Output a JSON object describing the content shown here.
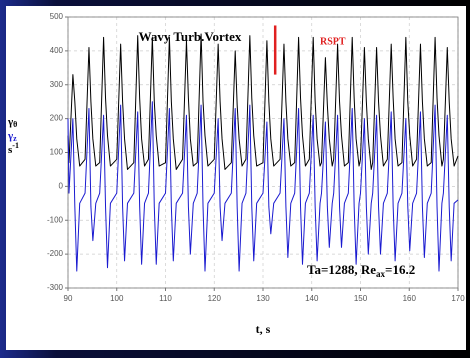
{
  "chart_data": {
    "type": "line",
    "title": "Wavy Turb.Vortex",
    "xlabel": "t, s",
    "ylabel": [
      {
        "text": "γ",
        "sub": "θ",
        "color": "#000000"
      },
      {
        "text": "γ",
        "sub": "z",
        "color": "#1a1ad0"
      },
      {
        "text": "s",
        "sup": "-1",
        "color": "#000000"
      }
    ],
    "annotation": {
      "main": "Ta=1288, Re",
      "sub": "ax",
      "tail": "=16.2"
    },
    "marker": {
      "label": "RSPT",
      "x": 132.5,
      "ymin": 330,
      "ymax": 475,
      "color": "#e02020"
    },
    "xlim": [
      90,
      170
    ],
    "xticks": [
      90,
      100,
      110,
      120,
      130,
      140,
      150,
      160,
      170
    ],
    "ylim": [
      -300,
      500
    ],
    "yticks": [
      -300,
      -200,
      -100,
      0,
      100,
      200,
      300,
      400,
      500
    ],
    "grid": true,
    "x": [
      90,
      90.2,
      91,
      91.4,
      91.8,
      92.4,
      93.5,
      94.3,
      94.7,
      95.1,
      95.7,
      96.5,
      97.3,
      97.7,
      98.1,
      98.7,
      100,
      100.8,
      101.2,
      101.6,
      102.2,
      103.5,
      104.3,
      104.7,
      105.1,
      105.7,
      106.5,
      107.3,
      107.7,
      108.1,
      108.7,
      110,
      110.8,
      111.2,
      111.6,
      112.2,
      113.5,
      114.3,
      114.7,
      115.1,
      115.7,
      116.5,
      117.3,
      117.7,
      118.1,
      118.7,
      120,
      120.8,
      121.2,
      121.6,
      122.2,
      123.5,
      124.3,
      124.7,
      125.1,
      125.7,
      126.5,
      127.3,
      127.7,
      128.1,
      128.7,
      130,
      130.8,
      131.2,
      131.6,
      132.2,
      133.5,
      134.3,
      134.7,
      135.1,
      135.7,
      136.5,
      137.3,
      137.7,
      138.1,
      138.7,
      139.5,
      140.3,
      140.7,
      141.1,
      141.7,
      142,
      142.8,
      143.2,
      143.6,
      144.2,
      144.5,
      145.3,
      145.7,
      146.1,
      146.7,
      147.5,
      148.3,
      148.7,
      149.1,
      149.7,
      150,
      150.8,
      151.2,
      151.6,
      152.2,
      152.5,
      153.3,
      153.7,
      154.1,
      154.7,
      155.5,
      156.3,
      156.7,
      157.1,
      157.7,
      158.5,
      159.3,
      159.7,
      160.1,
      160.7,
      161.5,
      162.3,
      162.7,
      163.1,
      163.7,
      164.5,
      165.3,
      165.7,
      166.1,
      166.7,
      167,
      167.8,
      168.2,
      168.6,
      169.2,
      170
    ],
    "series": [
      {
        "name": "γθ",
        "color": "#000000",
        "values": [
          150,
          70,
          330,
          250,
          140,
          60,
          80,
          410,
          250,
          140,
          60,
          70,
          440,
          260,
          150,
          60,
          80,
          420,
          250,
          140,
          50,
          70,
          445,
          260,
          140,
          60,
          80,
          440,
          250,
          150,
          60,
          70,
          440,
          250,
          140,
          50,
          80,
          430,
          260,
          140,
          60,
          70,
          450,
          250,
          150,
          60,
          80,
          420,
          250,
          140,
          50,
          70,
          400,
          240,
          140,
          60,
          80,
          445,
          260,
          150,
          60,
          70,
          430,
          250,
          140,
          60,
          80,
          420,
          250,
          140,
          60,
          70,
          440,
          260,
          150,
          60,
          80,
          440,
          250,
          140,
          60,
          70,
          380,
          240,
          140,
          60,
          80,
          420,
          250,
          150,
          60,
          70,
          440,
          260,
          140,
          60,
          80,
          410,
          250,
          140,
          50,
          70,
          410,
          250,
          150,
          60,
          80,
          420,
          260,
          140,
          60,
          70,
          440,
          250,
          150,
          60,
          80,
          420,
          250,
          140,
          60,
          70,
          440,
          260,
          150,
          60,
          80,
          410,
          250,
          140,
          60,
          90
        ]
      },
      {
        "name": "γz",
        "color": "#1a1ad0",
        "values": [
          200,
          -20,
          200,
          -60,
          -250,
          -50,
          -20,
          230,
          -60,
          -160,
          -50,
          -20,
          210,
          -60,
          -240,
          -50,
          -20,
          240,
          -60,
          -220,
          -50,
          -20,
          220,
          -60,
          -230,
          -50,
          -20,
          250,
          -60,
          -230,
          -50,
          -20,
          230,
          -60,
          -220,
          -50,
          -20,
          210,
          -60,
          -200,
          -50,
          -20,
          240,
          -60,
          -250,
          -50,
          -20,
          200,
          -60,
          -160,
          -50,
          -20,
          230,
          -60,
          -250,
          -50,
          -20,
          240,
          -60,
          -220,
          -50,
          -20,
          190,
          -60,
          -140,
          -50,
          -20,
          200,
          -60,
          -210,
          -50,
          -20,
          230,
          -60,
          -230,
          -50,
          -20,
          210,
          -60,
          -220,
          -50,
          -20,
          190,
          -60,
          -180,
          -50,
          -20,
          210,
          -60,
          -180,
          -50,
          -20,
          230,
          -60,
          -230,
          -50,
          -20,
          200,
          -60,
          -200,
          -50,
          -20,
          210,
          -60,
          -200,
          -50,
          -20,
          220,
          -60,
          -220,
          -50,
          -20,
          200,
          -60,
          -190,
          -50,
          -20,
          220,
          -60,
          -210,
          -50,
          -20,
          240,
          -60,
          -250,
          -50,
          -20,
          210,
          -60,
          -220,
          -50,
          -40
        ]
      }
    ]
  }
}
